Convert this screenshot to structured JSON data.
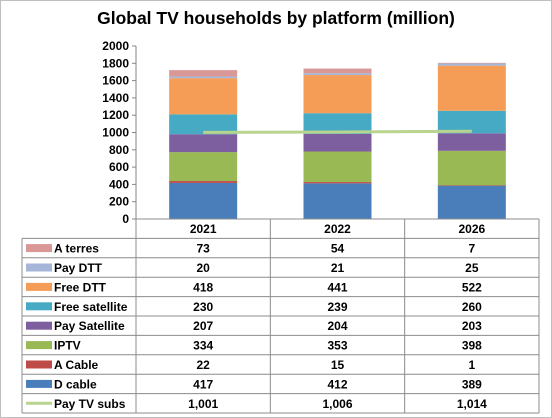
{
  "chart_data": {
    "type": "bar",
    "stacked": true,
    "title": "Global TV households by platform (million)",
    "categories": [
      "2021",
      "2022",
      "2026"
    ],
    "ylim": [
      0,
      2000
    ],
    "yticks": [
      "0",
      "200",
      "400",
      "600",
      "800",
      "1000",
      "1200",
      "1400",
      "1600",
      "1800",
      "2000"
    ],
    "grid": false,
    "legend_placement": "data table rows (left)",
    "series": [
      {
        "name": "D cable",
        "color": "#4a7ebb",
        "values": [
          417,
          412,
          389
        ],
        "labels": [
          "417",
          "412",
          "389"
        ]
      },
      {
        "name": "A Cable",
        "color": "#be4b48",
        "values": [
          22,
          15,
          1
        ],
        "labels": [
          "22",
          "15",
          "1"
        ]
      },
      {
        "name": "IPTV",
        "color": "#98b954",
        "values": [
          334,
          353,
          398
        ],
        "labels": [
          "334",
          "353",
          "398"
        ]
      },
      {
        "name": "Pay Satellite",
        "color": "#7d5fa0",
        "values": [
          207,
          204,
          203
        ],
        "labels": [
          "207",
          "204",
          "203"
        ]
      },
      {
        "name": "Free satellite",
        "color": "#46aac4",
        "values": [
          230,
          239,
          260
        ],
        "labels": [
          "230",
          "239",
          "260"
        ]
      },
      {
        "name": "Free DTT",
        "color": "#f59d56",
        "values": [
          418,
          441,
          522
        ],
        "labels": [
          "418",
          "441",
          "522"
        ]
      },
      {
        "name": "Pay DTT",
        "color": "#a5b6d9",
        "values": [
          20,
          21,
          25
        ],
        "labels": [
          "20",
          "21",
          "25"
        ]
      },
      {
        "name": "A terres",
        "color": "#d99795",
        "values": [
          73,
          54,
          7
        ],
        "labels": [
          "73",
          "54",
          "7"
        ]
      }
    ],
    "line_series": {
      "name": "Pay TV subs",
      "color": "#b8d48e",
      "values": [
        1001,
        1006,
        1014
      ],
      "labels": [
        "1,001",
        "1,006",
        "1,014"
      ]
    }
  }
}
